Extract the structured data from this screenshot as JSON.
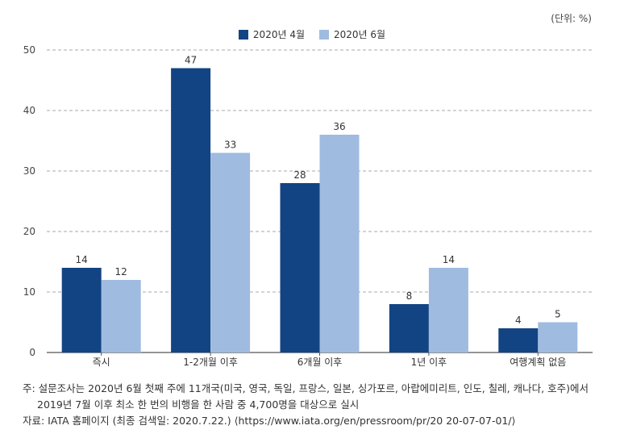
{
  "unit_label": "(단위: %)",
  "colors": {
    "series1": "#124483",
    "series2": "#9fbbe0",
    "grid": "#aaaaaa",
    "axis": "#555555"
  },
  "chart_data": {
    "type": "bar",
    "categories": [
      "즉시",
      "1-2개월 이후",
      "6개월 이후",
      "1년 이후",
      "여행계획 없음"
    ],
    "series": [
      {
        "name": "2020년 4월",
        "values": [
          14,
          47,
          28,
          8,
          4
        ]
      },
      {
        "name": "2020년 6월",
        "values": [
          12,
          33,
          36,
          14,
          5
        ]
      }
    ],
    "yticks": [
      0,
      10,
      20,
      30,
      40,
      50
    ],
    "ylim": [
      0,
      50
    ],
    "grid": true,
    "legend_position": "top-center"
  },
  "notes": {
    "line1": "주: 설문조사는 2020년 6월 첫째 주에 11개국(미국, 영국, 독일, 프랑스, 일본, 싱가포르, 아랍에미리트, 인도, 칠레, 캐나다, 호주)에서",
    "line2": "2019년 7월 이후 최소 한 번의 비행을 한 사람 중 4,700명을 대상으로 실시",
    "line3": "자료: IATA 홈페이지 (최종 검색일: 2020.7.22.) ⟨https://www.iata.org/en/pressroom/pr/20 20-07-07-01/⟩"
  }
}
